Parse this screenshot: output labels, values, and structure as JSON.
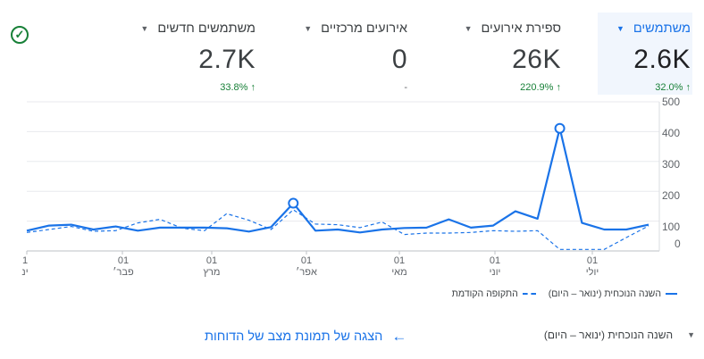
{
  "metrics": [
    {
      "id": "users",
      "label": "משתמשים",
      "value": "2.6K",
      "delta": "32.0%",
      "delta_icon": "arrow-up",
      "selected": true
    },
    {
      "id": "event_count",
      "label": "ספירת אירועים",
      "value": "26K",
      "delta": "220.9%",
      "delta_icon": "arrow-up",
      "selected": false
    },
    {
      "id": "key_events",
      "label": "אירועים מרכזיים",
      "value": "0",
      "delta": "-",
      "delta_icon": "",
      "selected": false
    },
    {
      "id": "new_users",
      "label": "משתמשים חדשים",
      "value": "2.7K",
      "delta": "33.8%",
      "delta_icon": "arrow-up",
      "selected": false
    }
  ],
  "icons": {
    "status": "check-circle-icon",
    "metric_dropdown": "caret-down-icon",
    "link": "arrow-left-icon"
  },
  "colors": {
    "accent": "#1a73e8",
    "positive": "#188038",
    "selected_bg": "#f1f6fd"
  },
  "chart_data": {
    "type": "line",
    "ylim": [
      0,
      500
    ],
    "yticks": [
      "500",
      "400",
      "300",
      "200",
      "100",
      "0"
    ],
    "xtick_labels": [
      {
        "day": "1",
        "month": "ינ"
      },
      {
        "day": "01",
        "month": "פבר׳"
      },
      {
        "day": "01",
        "month": "מרץ"
      },
      {
        "day": "01",
        "month": "אפר׳"
      },
      {
        "day": "01",
        "month": "מאי"
      },
      {
        "day": "01",
        "month": "יוני"
      },
      {
        "day": "01",
        "month": "יולי"
      }
    ],
    "series": [
      {
        "name": "השנה הנוכחית (ינואר – היום)",
        "style": "solid",
        "values": [
          68,
          85,
          88,
          72,
          82,
          68,
          78,
          78,
          78,
          76,
          65,
          80,
          160,
          68,
          72,
          62,
          72,
          77,
          78,
          106,
          78,
          85,
          133,
          108,
          411,
          94,
          72,
          72,
          88
        ]
      },
      {
        "name": "התקופה הקודמת",
        "style": "dashed",
        "values": [
          62,
          72,
          82,
          66,
          68,
          94,
          106,
          76,
          68,
          125,
          103,
          72,
          138,
          90,
          88,
          78,
          97,
          55,
          60,
          60,
          62,
          68,
          66,
          68,
          5,
          5,
          5,
          45,
          84
        ]
      }
    ],
    "highlighted_points": [
      {
        "series": 0,
        "index": 12
      },
      {
        "series": 0,
        "index": 24
      }
    ]
  },
  "legend": {
    "current": "השנה הנוכחית (ינואר – היום)",
    "previous": "התקופה הקודמת"
  },
  "footer": {
    "period_label": "השנה הנוכחית (ינואר – היום)",
    "link_label": "הצגה של תמונת מצב של הדוחות"
  }
}
